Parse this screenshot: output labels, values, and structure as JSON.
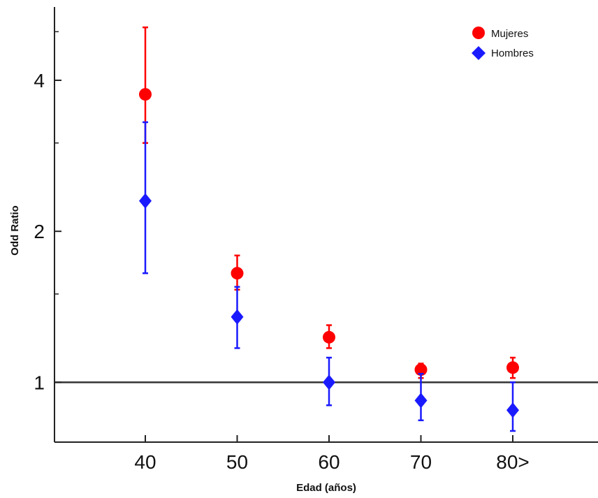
{
  "chart_data": {
    "type": "scatter",
    "title": "",
    "xlabel": "Edad (años)",
    "ylabel": "Odd Ratio",
    "y_scale": "log",
    "ylim": [
      0.76,
      5.6
    ],
    "grid": false,
    "legend_position": "top-right",
    "reference_line": 1,
    "categories": [
      "40",
      "50",
      "60",
      "70",
      "80>"
    ],
    "y_ticks": [
      1,
      2,
      4
    ],
    "y_tick_labels": [
      "1",
      "2",
      "4"
    ],
    "series": [
      {
        "name": "Mujeres",
        "marker": "circle",
        "color": "#ff0000",
        "values": [
          3.75,
          1.65,
          1.23,
          1.06,
          1.07
        ],
        "lower": [
          3.0,
          1.53,
          1.17,
          1.02,
          1.02
        ],
        "upper": [
          5.1,
          1.79,
          1.3,
          1.09,
          1.12
        ]
      },
      {
        "name": "Hombres",
        "marker": "diamond",
        "color": "#1a1aff",
        "values": [
          2.3,
          1.35,
          1.0,
          0.92,
          0.88
        ],
        "lower": [
          1.65,
          1.17,
          0.9,
          0.84,
          0.8
        ],
        "upper": [
          3.3,
          1.55,
          1.12,
          1.04,
          1.0
        ]
      }
    ]
  }
}
